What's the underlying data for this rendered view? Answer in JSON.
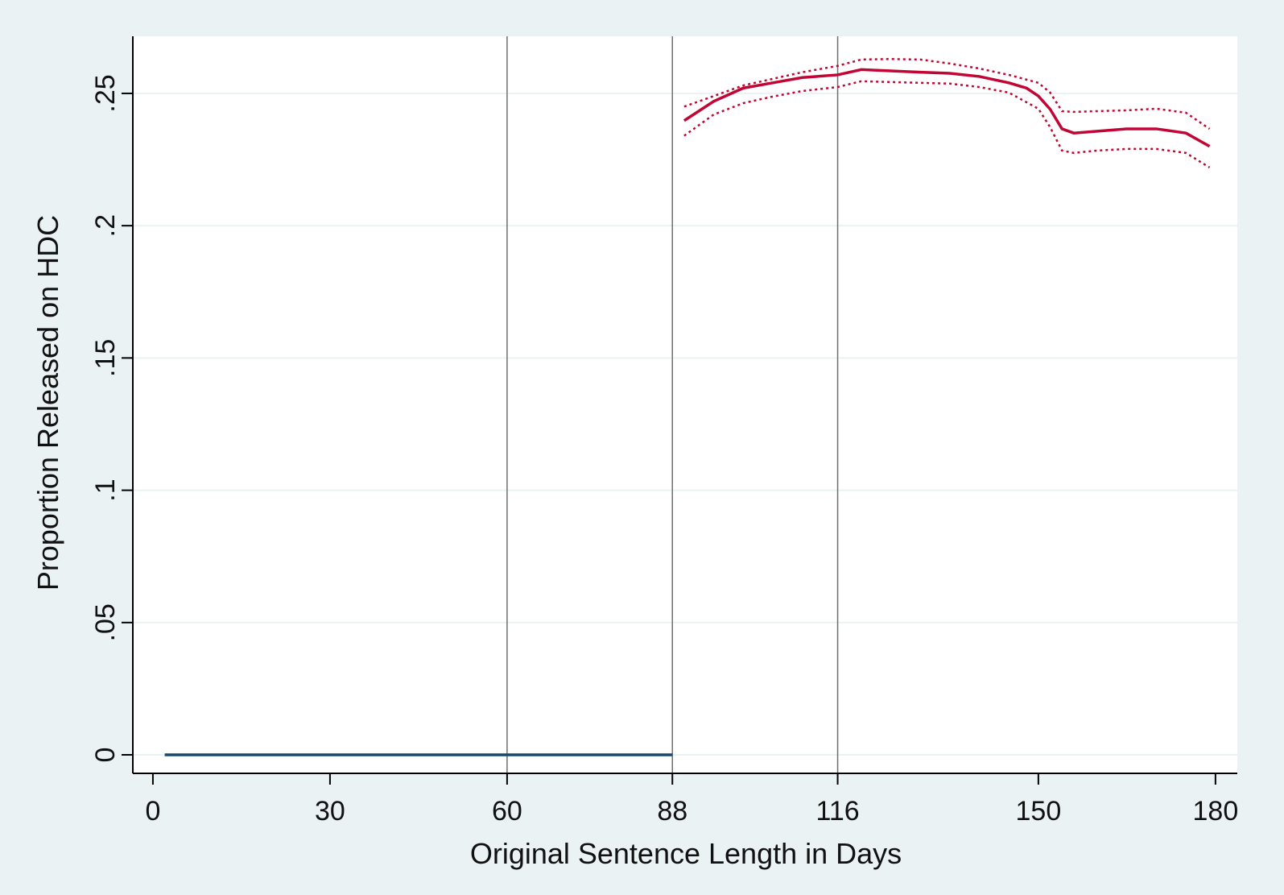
{
  "chart_data": {
    "type": "line",
    "x_label": "Original Sentence Length in Days",
    "y_label": "Proportion Released on HDC",
    "xlim": [
      -3.4,
      183.7
    ],
    "ylim": [
      -0.007,
      0.2716
    ],
    "xticks": [
      0,
      30,
      60,
      88,
      116,
      150,
      180
    ],
    "yticks": [
      0,
      {
        "value": 0.05,
        "label": ".05"
      },
      {
        "value": 0.1,
        "label": ".1"
      },
      {
        "value": 0.15,
        "label": ".15"
      },
      {
        "value": 0.2,
        "label": ".2"
      },
      {
        "value": 0.25,
        "label": ".25"
      }
    ],
    "grid": true,
    "xlines": [
      60,
      88,
      116
    ],
    "series": [
      {
        "color": "#1a476f",
        "style": "solid",
        "x": [
          2,
          88
        ],
        "values": [
          0,
          0
        ]
      },
      {
        "color": "#c10534",
        "style": "solid",
        "x": [
          90,
          95,
          100,
          105,
          110,
          116,
          120,
          125,
          130,
          135,
          140,
          145,
          148,
          150,
          152,
          154,
          156,
          160,
          165,
          170,
          175,
          179
        ],
        "values": [
          0.2397,
          0.247,
          0.252,
          0.254,
          0.256,
          0.257,
          0.259,
          0.2585,
          0.258,
          0.2576,
          0.2564,
          0.254,
          0.252,
          0.249,
          0.244,
          0.2366,
          0.235,
          0.2357,
          0.2366,
          0.2366,
          0.235,
          0.23
        ]
      },
      {
        "color": "#c10534",
        "style": "dotted",
        "x": [
          90,
          95,
          100,
          105,
          110,
          116,
          120,
          125,
          130,
          135,
          140,
          145,
          150,
          152,
          154,
          156,
          160,
          165,
          170,
          175,
          179
        ],
        "values": [
          0.245,
          0.249,
          0.253,
          0.2555,
          0.258,
          0.2604,
          0.2628,
          0.263,
          0.2628,
          0.2613,
          0.2594,
          0.257,
          0.254,
          0.2503,
          0.2433,
          0.243,
          0.2433,
          0.2436,
          0.2442,
          0.2427,
          0.2366
        ]
      },
      {
        "color": "#c10534",
        "style": "dotted",
        "x": [
          90,
          95,
          100,
          105,
          110,
          116,
          120,
          125,
          130,
          135,
          140,
          145,
          150,
          152,
          154,
          156,
          160,
          165,
          170,
          175,
          179
        ],
        "values": [
          0.234,
          0.242,
          0.2463,
          0.2488,
          0.2509,
          0.2524,
          0.2546,
          0.2543,
          0.254,
          0.2537,
          0.2524,
          0.2503,
          0.2442,
          0.2372,
          0.2284,
          0.2275,
          0.2284,
          0.229,
          0.229,
          0.2275,
          0.222
        ]
      }
    ]
  }
}
